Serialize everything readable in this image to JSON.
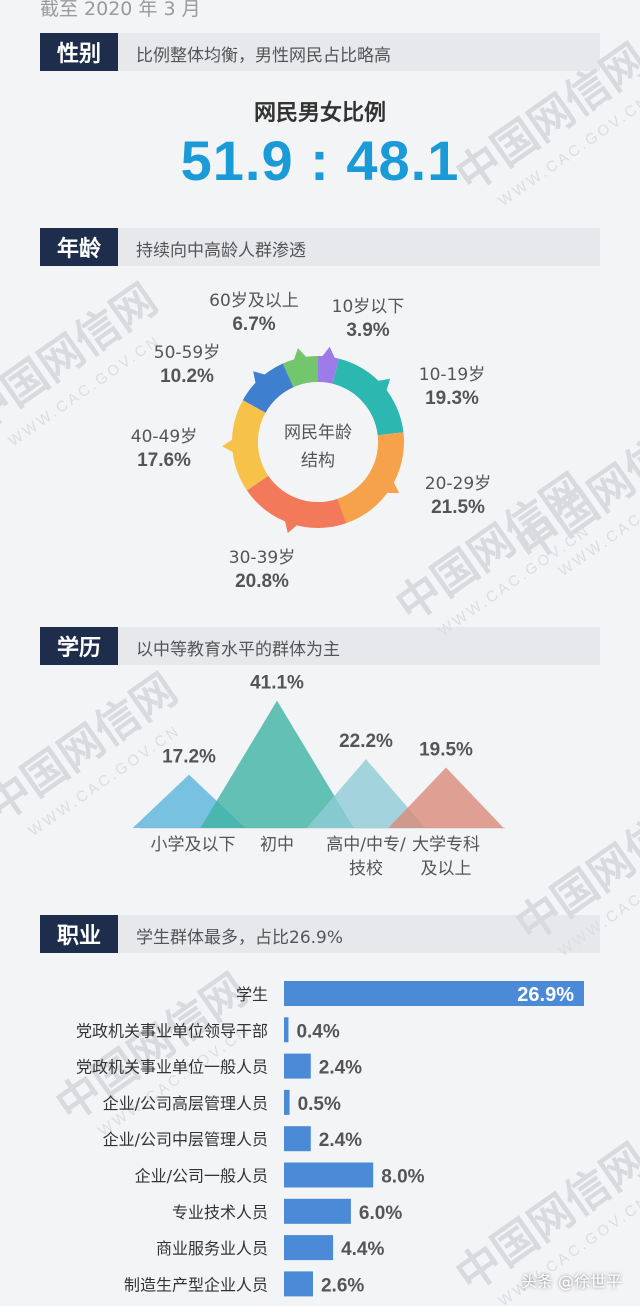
{
  "top_note": "截至 2020 年 3 月",
  "sections": {
    "gender": {
      "tag": "性别",
      "desc": "比例整体均衡，男性网民占比略高"
    },
    "age": {
      "tag": "年龄",
      "desc": "持续向中高龄人群渗透"
    },
    "education": {
      "tag": "学历",
      "desc": "以中等教育水平的群体为主"
    },
    "occupation": {
      "tag": "职业",
      "desc": "学生群体最多，占比26.9%"
    }
  },
  "gender": {
    "title": "网民男女比例",
    "ratio": "51.9 : 48.1"
  },
  "watermark": {
    "main": "中国网信网",
    "sub": "WWW.CAC.GOV.CN"
  },
  "credit": "头条 @徐世平",
  "chart_data": [
    {
      "type": "pie",
      "center_label": [
        "网民年龄",
        "结构"
      ],
      "categories": [
        "10岁以下",
        "10-19岁",
        "20-29岁",
        "30-39岁",
        "40-49岁",
        "50-59岁",
        "60岁及以上"
      ],
      "values": [
        3.9,
        19.3,
        21.5,
        20.8,
        17.6,
        10.2,
        6.7
      ],
      "value_labels": [
        "3.9%",
        "19.3%",
        "21.5%",
        "20.8%",
        "17.6%",
        "10.2%",
        "6.7%"
      ],
      "colors": [
        "#9c7be8",
        "#2cb7b0",
        "#f5a24a",
        "#f27a5a",
        "#f7c24a",
        "#3f7fd0",
        "#73c66b"
      ]
    },
    {
      "type": "area",
      "categories": [
        "小学及以下",
        "初中",
        "高中/中专/\n技校",
        "大学专科\n及以上"
      ],
      "category_lines": [
        [
          "小学及以下"
        ],
        [
          "初中"
        ],
        [
          "高中/中专/",
          "技校"
        ],
        [
          "大学专科",
          "及以上"
        ]
      ],
      "values": [
        17.2,
        41.1,
        22.2,
        19.5
      ],
      "value_labels": [
        "17.2%",
        "41.1%",
        "22.2%",
        "19.5%"
      ],
      "colors": [
        "#5ab4dc",
        "#3fb3a4",
        "#8fcad6",
        "#d98b7a"
      ]
    },
    {
      "type": "bar",
      "orientation": "horizontal",
      "categories": [
        "学生",
        "党政机关事业单位领导干部",
        "党政机关事业单位一般人员",
        "企业/公司高层管理人员",
        "企业/公司中层管理人员",
        "企业/公司一般人员",
        "专业技术人员",
        "商业服务业人员",
        "制造生产型企业人员"
      ],
      "values": [
        26.9,
        0.4,
        2.4,
        0.5,
        2.4,
        8.0,
        6.0,
        4.4,
        2.6
      ],
      "value_labels": [
        "26.9%",
        "0.4%",
        "2.4%",
        "0.5%",
        "2.4%",
        "8.0%",
        "6.0%",
        "4.4%",
        "2.6%"
      ],
      "bar_color": "#4a8ad6"
    }
  ]
}
